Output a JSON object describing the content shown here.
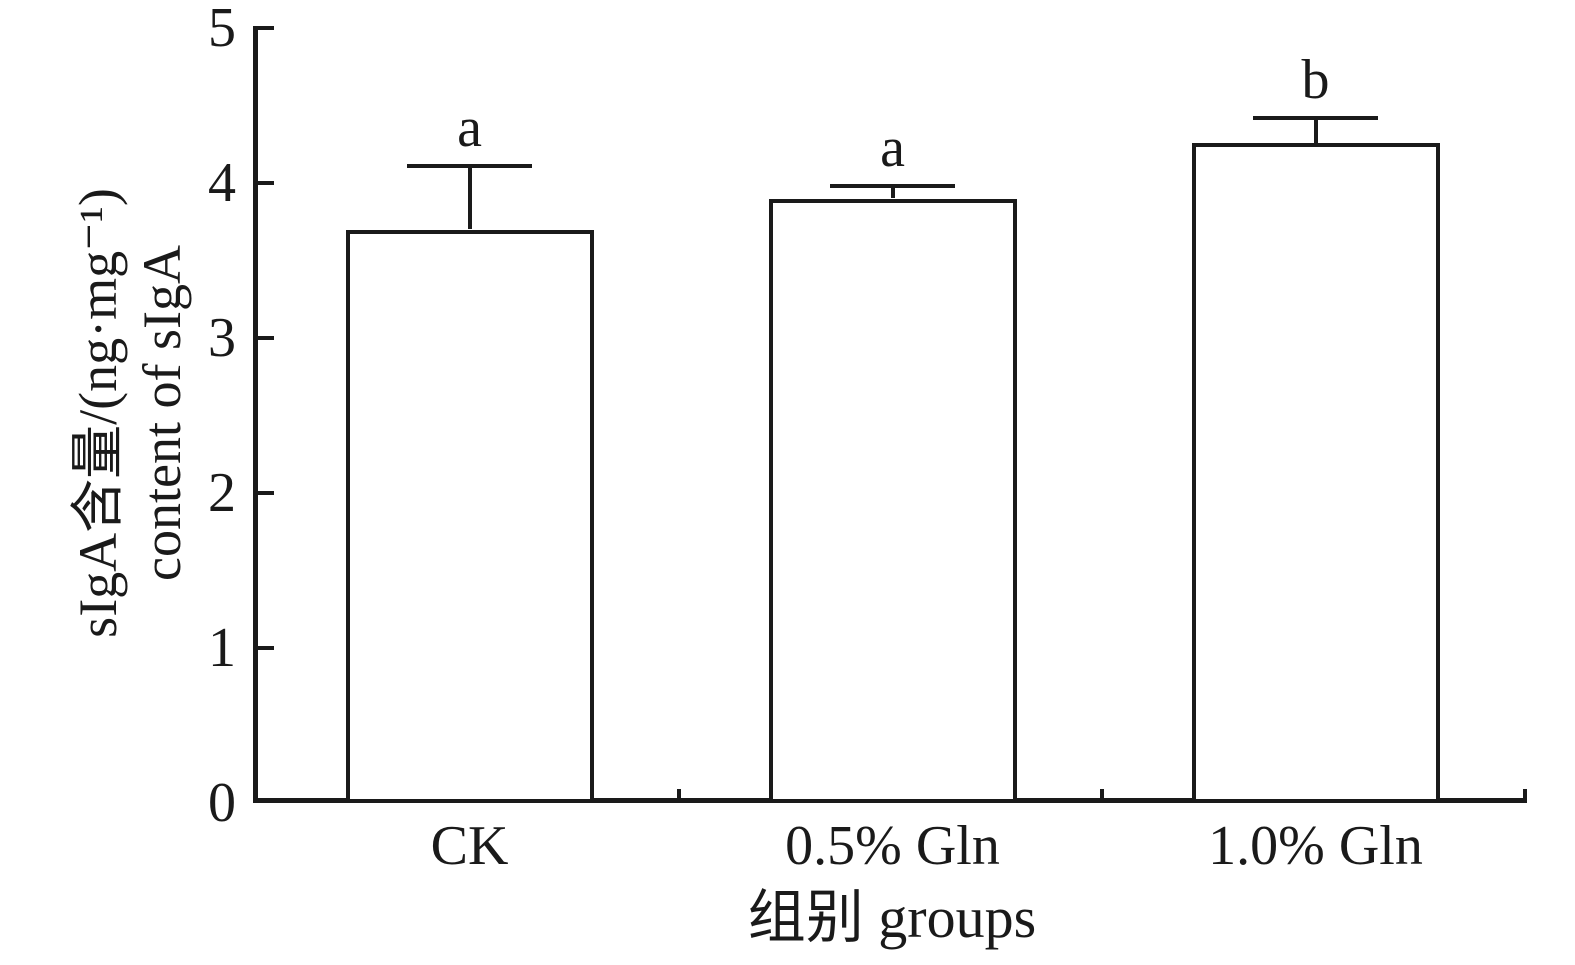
{
  "chart_data": {
    "type": "bar",
    "title": "",
    "categories": [
      "CK",
      "0.5% Gln",
      "1.0% Gln"
    ],
    "values": [
      3.7,
      3.9,
      4.26
    ],
    "errors_upper": [
      0.41,
      0.08,
      0.16
    ],
    "sig_labels": [
      "a",
      "a",
      "b"
    ],
    "xlabel": "组别 groups",
    "ylabel_line1": "sIgA含量/(ng·mg⁻¹)",
    "ylabel_line2": "content of sIgA",
    "ylim": [
      0,
      5
    ],
    "yticks": [
      "0",
      "1",
      "2",
      "3",
      "4",
      "5"
    ],
    "grid": false,
    "legend": "none",
    "bar_fill": "#ffffff",
    "line_color": "#1a1a1a"
  }
}
